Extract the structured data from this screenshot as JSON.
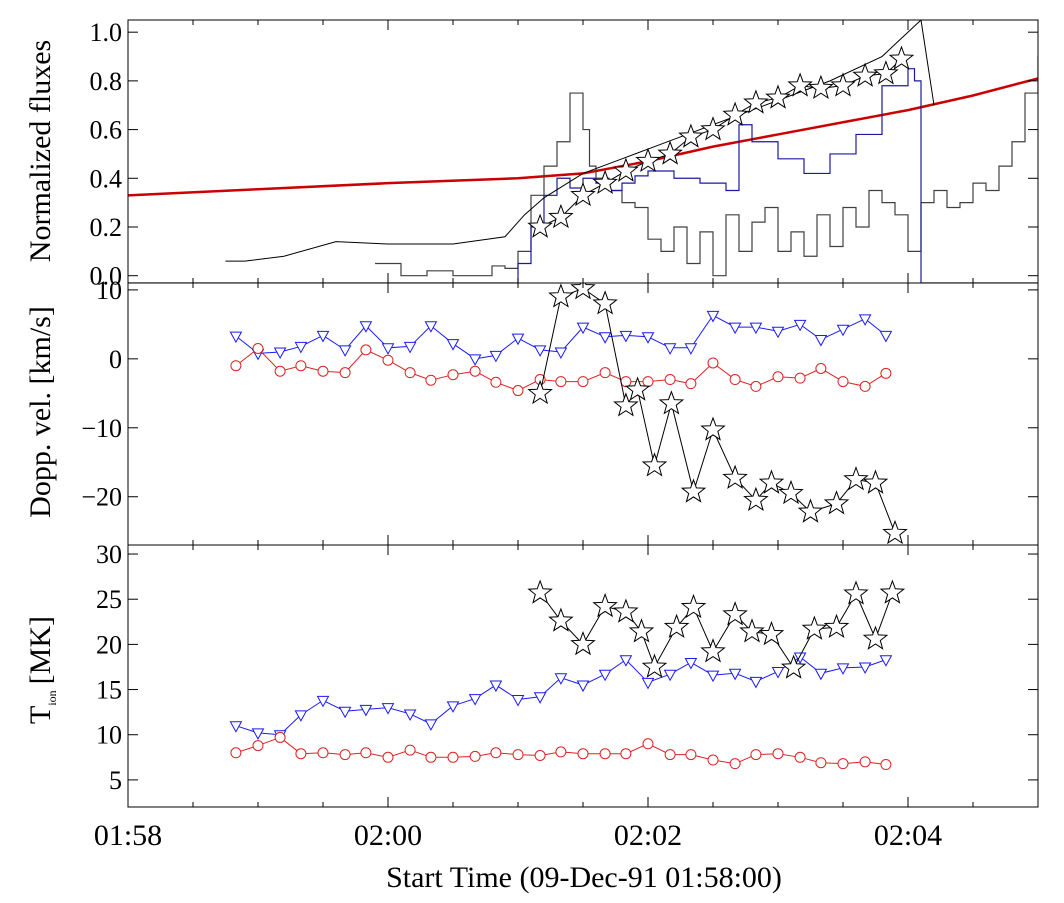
{
  "chart_data": {
    "type": "line",
    "x_axis": {
      "label": "Start Time (09-Dec-91 01:58:00)",
      "unit": "minutes since 01:58:00",
      "range": [
        0,
        7
      ],
      "ticks": [
        {
          "v": 0,
          "label": "01:58"
        },
        {
          "v": 2,
          "label": "02:00"
        },
        {
          "v": 4,
          "label": "02:02"
        },
        {
          "v": 6,
          "label": "02:04"
        }
      ]
    },
    "panels": [
      {
        "id": "fluxes",
        "ylabel": "Normalized fluxes",
        "ylim": [
          -0.03,
          1.05
        ],
        "yticks": [
          {
            "v": 0.0,
            "label": "0.0"
          },
          {
            "v": 0.2,
            "label": "0.2"
          },
          {
            "v": 0.4,
            "label": "0.4"
          },
          {
            "v": 0.6,
            "label": "0.6"
          },
          {
            "v": 0.8,
            "label": "0.8"
          },
          {
            "v": 1.0,
            "label": "1.0"
          }
        ],
        "series": [
          {
            "name": "red smooth flux",
            "color": "#cc0000",
            "kind": "line",
            "x": [
              0,
              1,
              2,
              3,
              3.5,
              4,
              4.5,
              5,
              5.5,
              6,
              6.5,
              7
            ],
            "y": [
              0.33,
              0.355,
              0.38,
              0.4,
              0.42,
              0.47,
              0.53,
              0.58,
              0.63,
              0.68,
              0.74,
              0.81
            ]
          },
          {
            "name": "gray histogram flux",
            "color": "#404040",
            "kind": "step",
            "x": [
              1.9,
              2.1,
              2.3,
              2.5,
              2.8,
              2.9,
              3.0,
              3.1,
              3.2,
              3.3,
              3.4,
              3.5,
              3.55,
              3.6,
              3.7,
              3.8,
              3.9,
              4.0,
              4.1,
              4.2,
              4.3,
              4.4,
              4.5,
              4.6,
              4.7,
              4.8,
              4.9,
              5.0,
              5.1,
              5.2,
              5.3,
              5.4,
              5.5,
              5.6,
              5.7,
              5.8,
              5.9,
              6.0,
              6.1,
              6.2,
              6.3,
              6.4,
              6.5,
              6.6,
              6.7,
              6.8,
              6.9,
              7.0
            ],
            "y": [
              0.05,
              0.0,
              0.02,
              0.0,
              0.04,
              0.03,
              0.1,
              0.33,
              0.45,
              0.55,
              0.75,
              0.6,
              0.45,
              0.4,
              0.35,
              0.3,
              0.28,
              0.15,
              0.1,
              0.2,
              0.05,
              0.18,
              0.0,
              0.25,
              0.1,
              0.22,
              0.28,
              0.1,
              0.18,
              0.08,
              0.25,
              0.12,
              0.28,
              0.2,
              0.35,
              0.3,
              0.25,
              0.1,
              0.3,
              0.35,
              0.28,
              0.3,
              0.38,
              0.35,
              0.45,
              0.55,
              0.75,
              0.9
            ]
          },
          {
            "name": "blue flux",
            "color": "#1a1aa0",
            "kind": "step",
            "x": [
              0,
              2.85,
              3.0,
              3.1,
              3.2,
              3.3,
              3.4,
              3.5,
              3.6,
              3.7,
              3.8,
              3.9,
              4.0,
              4.2,
              4.4,
              4.6,
              4.7,
              4.8,
              5.0,
              5.2,
              5.4,
              5.6,
              5.8,
              6.0,
              6.05,
              6.1,
              7.0
            ],
            "y": [
              -0.03,
              -0.03,
              0.05,
              0.2,
              0.33,
              0.4,
              0.36,
              0.4,
              0.38,
              0.35,
              0.38,
              0.41,
              0.43,
              0.4,
              0.38,
              0.35,
              0.62,
              0.55,
              0.48,
              0.42,
              0.5,
              0.58,
              0.78,
              0.85,
              0.8,
              -0.03,
              -0.03
            ]
          },
          {
            "name": "black smooth flux",
            "color": "#000000",
            "kind": "line",
            "x": [
              0.75,
              0.9,
              1.2,
              1.6,
              2.0,
              2.5,
              2.9,
              3.05,
              3.2,
              3.5,
              3.8,
              4.0,
              4.3,
              4.6,
              5.0,
              5.4,
              5.8,
              6.1,
              6.2
            ],
            "y": [
              0.06,
              0.06,
              0.08,
              0.14,
              0.13,
              0.13,
              0.16,
              0.25,
              0.32,
              0.42,
              0.48,
              0.52,
              0.58,
              0.64,
              0.72,
              0.8,
              0.9,
              1.05,
              0.7
            ]
          },
          {
            "name": "stars",
            "color": "#000000",
            "kind": "star-markers",
            "x": [
              3.17,
              3.33,
              3.5,
              3.67,
              3.83,
              4.0,
              4.17,
              4.33,
              4.5,
              4.67,
              4.83,
              5.0,
              5.17,
              5.33,
              5.5,
              5.67,
              5.83,
              5.95
            ],
            "y": [
              0.2,
              0.24,
              0.33,
              0.38,
              0.43,
              0.47,
              0.5,
              0.57,
              0.6,
              0.66,
              0.71,
              0.73,
              0.78,
              0.77,
              0.78,
              0.82,
              0.83,
              0.89
            ]
          }
        ]
      },
      {
        "id": "doppler",
        "ylabel": "Dopp. vel. [km/s]",
        "ylim": [
          -27,
          11
        ],
        "yticks": [
          {
            "v": 10,
            "label": "10"
          },
          {
            "v": 0,
            "label": "0"
          },
          {
            "v": -10,
            "label": "−10"
          },
          {
            "v": -20,
            "label": "−20"
          }
        ],
        "series": [
          {
            "name": "blue triangles",
            "color": "#1a1aff",
            "kind": "triangle-markers",
            "x": [
              0.83,
              1.0,
              1.17,
              1.33,
              1.5,
              1.67,
              1.83,
              2.0,
              2.17,
              2.33,
              2.5,
              2.67,
              2.83,
              3.0,
              3.17,
              3.33,
              3.5,
              3.67,
              3.83,
              4.0,
              4.17,
              4.33,
              4.5,
              4.67,
              4.83,
              5.0,
              5.17,
              5.33,
              5.5,
              5.67,
              5.83
            ],
            "y": [
              3.3,
              0.8,
              1.0,
              1.8,
              3.4,
              1.3,
              4.8,
              1.6,
              1.8,
              4.8,
              2.2,
              0.0,
              0.5,
              3.0,
              1.3,
              1.0,
              4.6,
              3.2,
              3.4,
              3.2,
              1.6,
              1.6,
              6.3,
              4.6,
              4.6,
              4.0,
              5.0,
              2.8,
              4.3,
              5.8,
              3.4
            ]
          },
          {
            "name": "red circles",
            "color": "#dd2222",
            "kind": "circle-markers",
            "x": [
              0.83,
              1.0,
              1.17,
              1.33,
              1.5,
              1.67,
              1.83,
              2.0,
              2.17,
              2.33,
              2.5,
              2.67,
              2.83,
              3.0,
              3.17,
              3.33,
              3.5,
              3.67,
              3.83,
              4.0,
              4.17,
              4.33,
              4.5,
              4.67,
              4.83,
              5.0,
              5.17,
              5.33,
              5.5,
              5.67,
              5.83
            ],
            "y": [
              -1.0,
              1.5,
              -1.8,
              -1.0,
              -1.8,
              -2.0,
              1.3,
              -0.2,
              -2.0,
              -3.1,
              -2.3,
              -1.8,
              -3.4,
              -4.6,
              -3.0,
              -3.3,
              -3.3,
              -2.0,
              -3.3,
              -3.3,
              -3.0,
              -3.6,
              -0.6,
              -3.0,
              -4.0,
              -2.6,
              -2.8,
              -1.4,
              -3.3,
              -4.0,
              -2.1
            ]
          },
          {
            "name": "stars",
            "color": "#000000",
            "kind": "star-markers",
            "x": [
              3.17,
              3.33,
              3.5,
              3.67,
              3.83,
              3.92,
              4.05,
              4.18,
              4.35,
              4.5,
              4.67,
              4.83,
              4.95,
              5.1,
              5.25,
              5.45,
              5.6,
              5.75,
              5.9
            ],
            "y": [
              -5.0,
              9.0,
              10.2,
              8.0,
              -6.8,
              -4.5,
              -15.5,
              -6.5,
              -19.3,
              -10.3,
              -17.3,
              -20.5,
              -18.0,
              -19.5,
              -22.2,
              -21.0,
              -17.5,
              -18.0,
              -25.3
            ]
          }
        ]
      },
      {
        "id": "temperature",
        "ylabel": "T",
        "ylabel_sub": "ion",
        "ylabel_unit": "[MK]",
        "ylim": [
          2,
          31
        ],
        "yticks": [
          {
            "v": 5,
            "label": "5"
          },
          {
            "v": 10,
            "label": "10"
          },
          {
            "v": 15,
            "label": "15"
          },
          {
            "v": 20,
            "label": "20"
          },
          {
            "v": 25,
            "label": "25"
          },
          {
            "v": 30,
            "label": "30"
          }
        ],
        "series": [
          {
            "name": "blue triangles",
            "color": "#1a1aff",
            "kind": "triangle-markers",
            "x": [
              0.83,
              1.0,
              1.17,
              1.33,
              1.5,
              1.67,
              1.83,
              2.0,
              2.17,
              2.33,
              2.5,
              2.67,
              2.83,
              3.0,
              3.17,
              3.33,
              3.5,
              3.67,
              3.83,
              4.0,
              4.17,
              4.33,
              4.5,
              4.67,
              4.83,
              5.0,
              5.17,
              5.33,
              5.5,
              5.67,
              5.83
            ],
            "y": [
              11.0,
              10.2,
              10.0,
              12.2,
              13.8,
              12.6,
              12.8,
              13.0,
              12.3,
              11.2,
              13.2,
              14.0,
              15.5,
              13.9,
              14.2,
              16.3,
              15.5,
              16.7,
              18.3,
              15.8,
              16.7,
              18.0,
              16.6,
              16.8,
              15.9,
              17.0,
              18.6,
              16.8,
              17.4,
              17.5,
              18.3
            ]
          },
          {
            "name": "red circles",
            "color": "#dd2222",
            "kind": "circle-markers",
            "x": [
              0.83,
              1.0,
              1.17,
              1.33,
              1.5,
              1.67,
              1.83,
              2.0,
              2.17,
              2.33,
              2.5,
              2.67,
              2.83,
              3.0,
              3.17,
              3.33,
              3.5,
              3.67,
              3.83,
              4.0,
              4.17,
              4.33,
              4.5,
              4.67,
              4.83,
              5.0,
              5.17,
              5.33,
              5.5,
              5.67,
              5.83
            ],
            "y": [
              8.0,
              8.8,
              9.7,
              7.9,
              8.0,
              7.8,
              8.0,
              7.5,
              8.3,
              7.5,
              7.5,
              7.6,
              8.0,
              7.8,
              7.7,
              8.1,
              7.9,
              7.9,
              7.9,
              9.0,
              7.8,
              7.8,
              7.2,
              6.8,
              7.8,
              7.9,
              7.5,
              6.9,
              6.8,
              7.0,
              6.7
            ]
          },
          {
            "name": "stars",
            "color": "#000000",
            "kind": "star-markers",
            "x": [
              3.17,
              3.33,
              3.5,
              3.67,
              3.83,
              3.95,
              4.05,
              4.22,
              4.35,
              4.5,
              4.67,
              4.8,
              4.95,
              5.12,
              5.28,
              5.45,
              5.6,
              5.75,
              5.88
            ],
            "y": [
              25.7,
              22.6,
              20.0,
              24.2,
              23.6,
              21.4,
              17.5,
              21.9,
              24.1,
              19.2,
              23.3,
              21.4,
              21.1,
              17.4,
              21.7,
              21.9,
              25.6,
              20.6,
              25.7
            ]
          }
        ]
      }
    ]
  }
}
